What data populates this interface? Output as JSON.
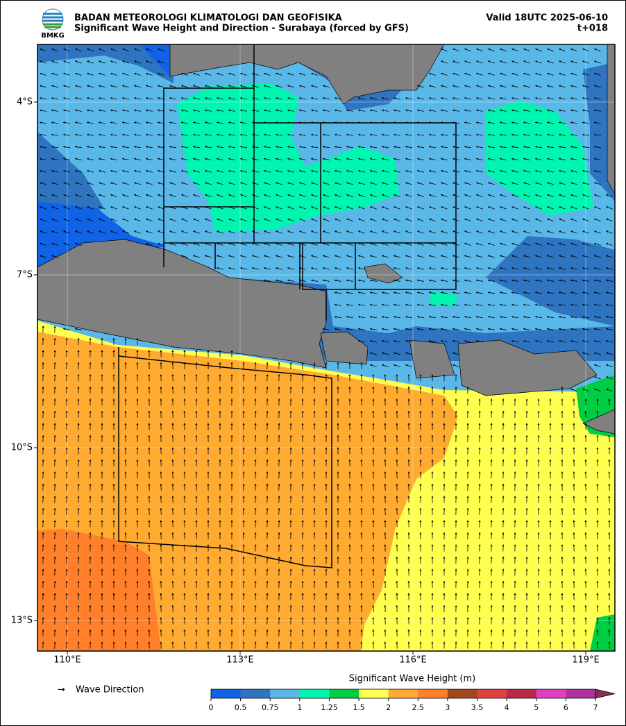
{
  "header": {
    "logo": "BMKG",
    "agency": "BADAN METEOROLOGI KLIMATOLOGI DAN GEOFISIKA",
    "subtitle": "Significant Wave Height and Direction - Surabaya (forced by GFS)",
    "valid": "Valid 18UTC 2025-06-10",
    "lead": "t+018"
  },
  "map": {
    "lon_ticks": [
      {
        "value": 110,
        "label": "110°E"
      },
      {
        "value": 113,
        "label": "113°E"
      },
      {
        "value": 116,
        "label": "116°E"
      },
      {
        "value": 119,
        "label": "119°E"
      }
    ],
    "lat_ticks": [
      {
        "value": -4,
        "label": "4°S"
      },
      {
        "value": -7,
        "label": "7°S"
      },
      {
        "value": -10,
        "label": "10°S"
      },
      {
        "value": -13,
        "label": "13°S"
      }
    ]
  },
  "legend": {
    "label": "Wave Direction"
  },
  "colorbar": {
    "title": "Significant Wave Height (m)",
    "ticks": [
      0,
      0.5,
      0.75,
      1,
      1.25,
      1.5,
      2,
      2.5,
      3,
      3.5,
      4,
      5,
      6,
      7
    ],
    "colors": [
      "#1062e6",
      "#2f74c0",
      "#5ab8e8",
      "#00f5b0",
      "#00cc44",
      "#ffff50",
      "#ffaa30",
      "#ff7f2a",
      "#a0481c",
      "#e04040",
      "#b82848",
      "#e040c0",
      "#b030a0"
    ],
    "extend_color": "#8a2c58"
  }
}
